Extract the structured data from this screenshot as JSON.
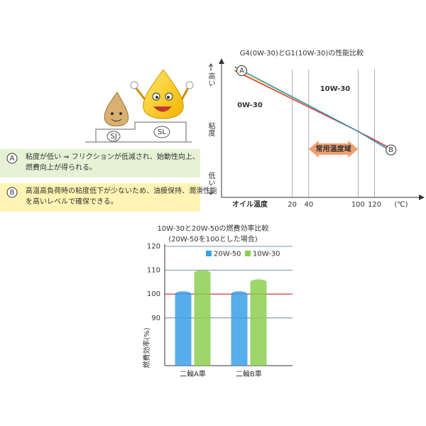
{
  "mascot": {
    "labels": [
      "SJ",
      "SL"
    ]
  },
  "notes": [
    {
      "marker": "A",
      "text": [
        "粘度が低い ⇒ フリクションが低減され、始動性向上、",
        "燃費向上が得られる。"
      ],
      "color": "#e6f2d6"
    },
    {
      "marker": "B",
      "text": [
        "高温高負荷時の粘度低下が少ないため、油膜保持、潤滑性能",
        "を高いレベルで確保できる。"
      ],
      "color": "#fff4b3"
    }
  ],
  "chart_data": [
    {
      "type": "line",
      "title": "G4(0W-30)とG1(10W-30)の性能比較",
      "x_label": "オイル温度",
      "x_unit": "(℃)",
      "y_label": "粘度",
      "y_top_label": "高い",
      "y_bottom_label": "低い",
      "x": [
        -50,
        100,
        140
      ],
      "xlim": [
        -66,
        148
      ],
      "xticks": [
        20,
        40,
        100,
        120
      ],
      "grid": true,
      "ylim": [
        0,
        100
      ],
      "series": [
        {
          "name": "0W-30",
          "color": "#e03a3a",
          "values": [
            96,
            50,
            37
          ]
        },
        {
          "name": "10W-30",
          "color": "#2a8fb0",
          "values": [
            99,
            50,
            35
          ]
        }
      ],
      "markers": [
        "A",
        "B"
      ],
      "range_annotation": {
        "text": "常用温度域",
        "x": [
          40,
          100
        ],
        "color": "#f0a070"
      }
    },
    {
      "type": "bar",
      "title": "10W-30と20W-50の燃費効率比較",
      "subtitle": "(20W-50を100とした場合)",
      "y_label": "燃費効率(%)",
      "categories": [
        "二輪A車",
        "二輪B車"
      ],
      "ylim": [
        70,
        120
      ],
      "yticks": [
        90,
        100,
        110,
        120
      ],
      "grid": true,
      "reference_line": {
        "value": 100,
        "color": "#d02020"
      },
      "series": [
        {
          "name": "20W-50",
          "color": "#3aa0e8",
          "values": [
            100,
            100
          ]
        },
        {
          "name": "10W-30",
          "color": "#8ccf50",
          "values": [
            108.8,
            105
          ]
        }
      ]
    }
  ]
}
